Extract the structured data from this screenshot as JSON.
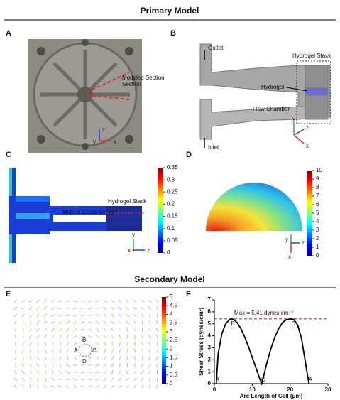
{
  "sections": [
    "Primary Model",
    "Secondary Model"
  ],
  "panels": {
    "A": {
      "label": "A",
      "annotation": "Modeled Section",
      "axes": [
        "z",
        "y",
        "x"
      ]
    },
    "B": {
      "label": "B",
      "texts": [
        "Outlet",
        "Hydrogel Stack",
        "Hydrogel",
        "Flow Chamber",
        "Inlet"
      ],
      "axes": [
        "y",
        "z",
        "x"
      ]
    },
    "C": {
      "label": "C",
      "texts": [
        "Hydrogel Stack",
        "Midline Cross Section"
      ],
      "axes": [
        "y",
        "x",
        "z"
      ],
      "colorbar": {
        "range": [
          0,
          0.35
        ],
        "ticks": [
          0.35,
          0.3,
          0.25,
          0.2,
          0.15,
          0.1,
          0.05,
          0
        ]
      }
    },
    "D": {
      "label": "D",
      "axes": [
        "y",
        "x",
        "z"
      ],
      "colorbar": {
        "range": [
          0,
          10
        ],
        "ticks": [
          10,
          9,
          8,
          7,
          6,
          5,
          4,
          3,
          2,
          1,
          0
        ]
      }
    },
    "E": {
      "label": "E",
      "points": [
        "B",
        "A",
        "C",
        "D"
      ],
      "colorbar": {
        "range": [
          0,
          5
        ],
        "ticks": [
          5,
          4.5,
          4,
          3.5,
          3,
          2.5,
          2,
          1.5,
          1,
          0.5,
          0
        ]
      }
    },
    "F": {
      "label": "F"
    }
  },
  "chart_data": {
    "type": "line",
    "xlabel": "Arc Length of Cell (μm)",
    "ylabel": "Shear Stress (dynes/cm²)",
    "xlim": [
      0,
      30
    ],
    "ylim": [
      0,
      7
    ],
    "xticks": [
      0,
      10,
      20,
      30
    ],
    "yticks": [
      0,
      1,
      2,
      3,
      4,
      5,
      6,
      7
    ],
    "color": "#000000",
    "x": [
      0.5,
      1,
      2,
      3,
      4,
      4.5,
      5,
      6,
      7,
      8,
      9,
      10,
      11,
      12,
      12.5,
      13,
      14,
      15,
      16,
      17,
      18,
      19,
      20,
      20.5,
      21,
      22,
      23,
      24,
      24.5,
      25
    ],
    "y": [
      0,
      2.5,
      4.2,
      5.0,
      5.35,
      5.41,
      5.38,
      5.1,
      4.6,
      3.9,
      3.1,
      2.2,
      1.3,
      0.4,
      0,
      0.6,
      1.9,
      3.0,
      3.9,
      4.6,
      5.1,
      5.35,
      5.4,
      5.41,
      5.35,
      4.9,
      3.8,
      1.9,
      0.9,
      0
    ],
    "threshold": {
      "value": 5.41,
      "label": "Max = 5.41 dynes cm⁻²",
      "color": "#e0302a"
    },
    "points": [
      {
        "label": "A",
        "x": 0.5,
        "y": 0
      },
      {
        "label": "B",
        "x": 4.5,
        "y": 5.41
      },
      {
        "label": "C",
        "x": 12.5,
        "y": 0
      },
      {
        "label": "D",
        "x": 20.5,
        "y": 5.41
      },
      {
        "label": "A",
        "x": 25,
        "y": 0
      }
    ],
    "point_color": "#e0302a"
  }
}
